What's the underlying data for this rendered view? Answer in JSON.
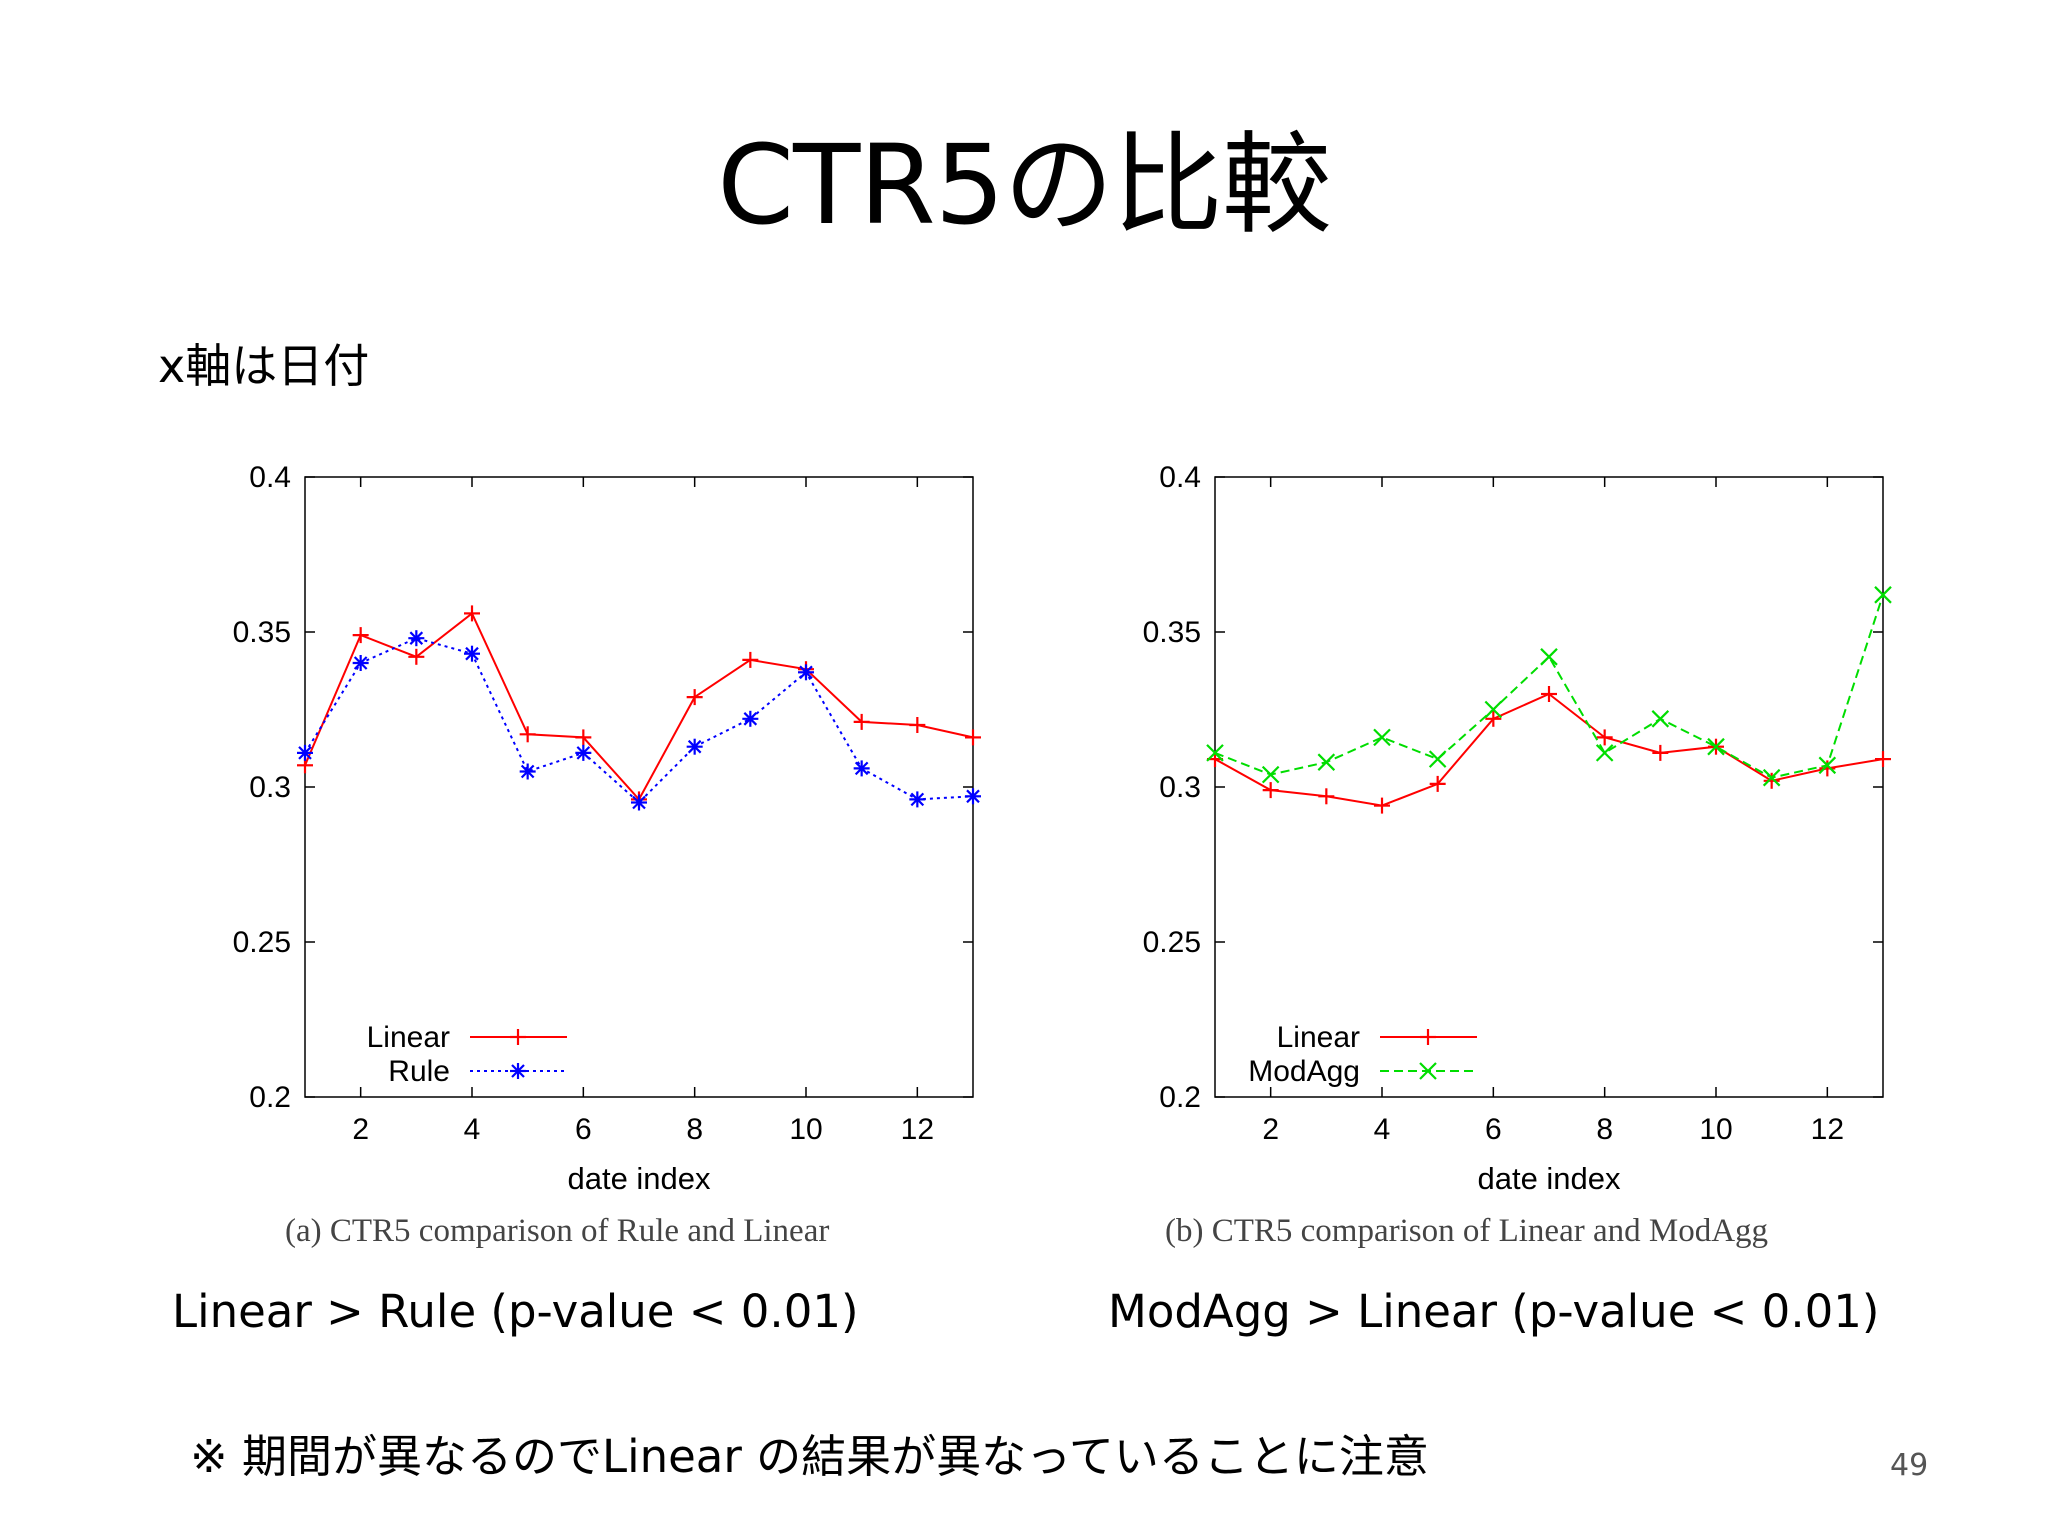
{
  "slide": {
    "title": "CTR5の比較",
    "subtitle": "x軸は日付",
    "note": "※ 期間が異なるのでLinear の結果が異なっていることに注意",
    "page_number": "49"
  },
  "charts": [
    {
      "caption": "(a) CTR5 comparison of Rule and Linear",
      "result": "Linear > Rule (p-value < 0.01)"
    },
    {
      "caption": "(b) CTR5 comparison of Linear and ModAgg",
      "result": "ModAgg > Linear (p-value < 0.01)"
    }
  ],
  "chart_data": [
    {
      "type": "line",
      "xlabel": "date index",
      "ylabel": "",
      "xlim": [
        1,
        13
      ],
      "ylim": [
        0.2,
        0.4
      ],
      "xticks": [
        2,
        4,
        6,
        8,
        10,
        12
      ],
      "yticks": [
        0.2,
        0.25,
        0.3,
        0.35,
        0.4
      ],
      "ytick_labels": [
        "0.2",
        "0.25",
        "0.3",
        "0.35",
        "0.4"
      ],
      "grid": false,
      "legend_position": "bottom-left",
      "x": [
        1,
        2,
        3,
        4,
        5,
        6,
        7,
        8,
        9,
        10,
        11,
        12,
        13
      ],
      "series": [
        {
          "name": "Linear",
          "color": "#ff0000",
          "marker": "plus",
          "dash": "solid",
          "values": [
            0.307,
            0.349,
            0.342,
            0.356,
            0.317,
            0.316,
            0.296,
            0.329,
            0.341,
            0.338,
            0.321,
            0.32,
            0.316
          ]
        },
        {
          "name": "Rule",
          "color": "#0000ff",
          "marker": "star",
          "dash": "dotted",
          "values": [
            0.311,
            0.34,
            0.348,
            0.343,
            0.305,
            0.311,
            0.295,
            0.313,
            0.322,
            0.337,
            0.306,
            0.296,
            0.297
          ]
        }
      ]
    },
    {
      "type": "line",
      "xlabel": "date index",
      "ylabel": "",
      "xlim": [
        1,
        13
      ],
      "ylim": [
        0.2,
        0.4
      ],
      "xticks": [
        2,
        4,
        6,
        8,
        10,
        12
      ],
      "yticks": [
        0.2,
        0.25,
        0.3,
        0.35,
        0.4
      ],
      "ytick_labels": [
        "0.2",
        "0.25",
        "0.3",
        "0.35",
        "0.4"
      ],
      "grid": false,
      "legend_position": "bottom-left",
      "x": [
        1,
        2,
        3,
        4,
        5,
        6,
        7,
        8,
        9,
        10,
        11,
        12,
        13
      ],
      "series": [
        {
          "name": "Linear",
          "color": "#ff0000",
          "marker": "plus",
          "dash": "solid",
          "values": [
            0.309,
            0.299,
            0.297,
            0.294,
            0.301,
            0.322,
            0.33,
            0.316,
            0.311,
            0.313,
            0.302,
            0.306,
            0.309
          ]
        },
        {
          "name": "ModAgg",
          "color": "#00dd00",
          "marker": "cross",
          "dash": "dashed",
          "values": [
            0.311,
            0.304,
            0.308,
            0.316,
            0.309,
            0.325,
            0.342,
            0.311,
            0.322,
            0.313,
            0.303,
            0.307,
            0.362
          ]
        }
      ]
    }
  ]
}
